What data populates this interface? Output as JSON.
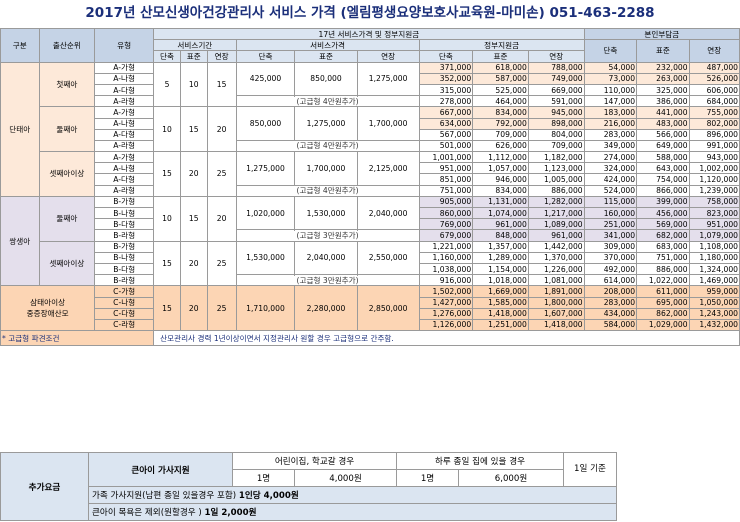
{
  "title": "2017년 산모신생아건강관리사 서비스 가격 (엘림평생요양보호사교육원-마미손)  051-463-2288",
  "headers": {
    "category": "구분",
    "birth_order": "출산순위",
    "type": "유형",
    "group_17": "17년 서비스가격 및 정부지원금",
    "self_pay": "본인부담금",
    "service_period": "서비스기간",
    "service_price": "서비스가격",
    "gov_support": "정부지원금",
    "short": "단축",
    "standard": "표준",
    "extended": "연장"
  },
  "notes": {
    "g1": "(고급형 4만원추가)",
    "g2": "(고급형 4만원추가)",
    "g3": "(고급형 4만원추가)",
    "g4": "(고급형 3만원추가)",
    "g5": "(고급형 3만원추가)"
  },
  "groups": [
    {
      "category": "단태아",
      "order": "첫째아",
      "days": [
        "5",
        "10",
        "15"
      ],
      "prices": [
        "425,000",
        "850,000",
        "1,275,000"
      ],
      "rows": [
        {
          "type": "A-가형",
          "gov": [
            "371,000",
            "618,000",
            "788,000"
          ],
          "self": [
            "54,000",
            "232,000",
            "487,000"
          ]
        },
        {
          "type": "A-나형",
          "gov": [
            "352,000",
            "587,000",
            "749,000"
          ],
          "self": [
            "73,000",
            "263,000",
            "526,000"
          ]
        },
        {
          "type": "A-다형",
          "gov": [
            "315,000",
            "525,000",
            "669,000"
          ],
          "self": [
            "110,000",
            "325,000",
            "606,000"
          ]
        },
        {
          "type": "A-라형",
          "gov": [
            "278,000",
            "464,000",
            "591,000"
          ],
          "self": [
            "147,000",
            "386,000",
            "684,000"
          ]
        }
      ]
    },
    {
      "order": "둘째아",
      "days": [
        "10",
        "15",
        "20"
      ],
      "prices": [
        "850,000",
        "1,275,000",
        "1,700,000"
      ],
      "rows": [
        {
          "type": "A-가형",
          "gov": [
            "667,000",
            "834,000",
            "945,000"
          ],
          "self": [
            "183,000",
            "441,000",
            "755,000"
          ]
        },
        {
          "type": "A-나형",
          "gov": [
            "634,000",
            "792,000",
            "898,000"
          ],
          "self": [
            "216,000",
            "483,000",
            "802,000"
          ]
        },
        {
          "type": "A-다형",
          "gov": [
            "567,000",
            "709,000",
            "804,000"
          ],
          "self": [
            "283,000",
            "566,000",
            "896,000"
          ]
        },
        {
          "type": "A-라형",
          "gov": [
            "501,000",
            "626,000",
            "709,000"
          ],
          "self": [
            "349,000",
            "649,000",
            "991,000"
          ]
        }
      ]
    },
    {
      "order": "셋째아이상",
      "days": [
        "15",
        "20",
        "25"
      ],
      "prices": [
        "1,275,000",
        "1,700,000",
        "2,125,000"
      ],
      "rows": [
        {
          "type": "A-가형",
          "gov": [
            "1,001,000",
            "1,112,000",
            "1,182,000"
          ],
          "self": [
            "274,000",
            "588,000",
            "943,000"
          ]
        },
        {
          "type": "A-나형",
          "gov": [
            "951,000",
            "1,057,000",
            "1,123,000"
          ],
          "self": [
            "324,000",
            "643,000",
            "1,002,000"
          ]
        },
        {
          "type": "A-다형",
          "gov": [
            "851,000",
            "946,000",
            "1,005,000"
          ],
          "self": [
            "424,000",
            "754,000",
            "1,120,000"
          ]
        },
        {
          "type": "A-라형",
          "gov": [
            "751,000",
            "834,000",
            "886,000"
          ],
          "self": [
            "524,000",
            "866,000",
            "1,239,000"
          ]
        }
      ]
    },
    {
      "category": "쌍생아",
      "order": "둘째아",
      "days": [
        "10",
        "15",
        "20"
      ],
      "prices": [
        "1,020,000",
        "1,530,000",
        "2,040,000"
      ],
      "rows": [
        {
          "type": "B-가형",
          "gov": [
            "905,000",
            "1,131,000",
            "1,282,000"
          ],
          "self": [
            "115,000",
            "399,000",
            "758,000"
          ]
        },
        {
          "type": "B-나형",
          "gov": [
            "860,000",
            "1,074,000",
            "1,217,000"
          ],
          "self": [
            "160,000",
            "456,000",
            "823,000"
          ]
        },
        {
          "type": "B-다형",
          "gov": [
            "769,000",
            "961,000",
            "1,089,000"
          ],
          "self": [
            "251,000",
            "569,000",
            "951,000"
          ]
        },
        {
          "type": "B-라형",
          "gov": [
            "679,000",
            "848,000",
            "961,000"
          ],
          "self": [
            "341,000",
            "682,000",
            "1,079,000"
          ]
        }
      ]
    },
    {
      "order": "셋째아이상",
      "days": [
        "15",
        "20",
        "25"
      ],
      "prices": [
        "1,530,000",
        "2,040,000",
        "2,550,000"
      ],
      "rows": [
        {
          "type": "B-가형",
          "gov": [
            "1,221,000",
            "1,357,000",
            "1,442,000"
          ],
          "self": [
            "309,000",
            "683,000",
            "1,108,000"
          ]
        },
        {
          "type": "B-나형",
          "gov": [
            "1,160,000",
            "1,289,000",
            "1,370,000"
          ],
          "self": [
            "370,000",
            "751,000",
            "1,180,000"
          ]
        },
        {
          "type": "B-다형",
          "gov": [
            "1,038,000",
            "1,154,000",
            "1,226,000"
          ],
          "self": [
            "492,000",
            "886,000",
            "1,324,000"
          ]
        },
        {
          "type": "B-라형",
          "gov": [
            "916,000",
            "1,018,000",
            "1,081,000"
          ],
          "self": [
            "614,000",
            "1,022,000",
            "1,469,000"
          ]
        }
      ]
    },
    {
      "category": "삼태아이상\n중증장애산모",
      "days": [
        "15",
        "20",
        "25"
      ],
      "prices": [
        "1,710,000",
        "2,280,000",
        "2,850,000"
      ],
      "rows": [
        {
          "type": "C-가형",
          "gov": [
            "1,502,000",
            "1,669,000",
            "1,891,000"
          ],
          "self": [
            "208,000",
            "611,000",
            "959,000"
          ]
        },
        {
          "type": "C-나형",
          "gov": [
            "1,427,000",
            "1,585,000",
            "1,800,000"
          ],
          "self": [
            "283,000",
            "695,000",
            "1,050,000"
          ]
        },
        {
          "type": "C-다형",
          "gov": [
            "1,276,000",
            "1,418,000",
            "1,607,000"
          ],
          "self": [
            "434,000",
            "862,000",
            "1,243,000"
          ]
        },
        {
          "type": "C-라형",
          "gov": [
            "1,126,000",
            "1,251,000",
            "1,418,000"
          ],
          "self": [
            "584,000",
            "1,029,000",
            "1,432,000"
          ]
        }
      ]
    }
  ],
  "premium_note": {
    "label": "* 고급형 파견조건",
    "text": "산모관리사 경력 1년이상이면서 지정관리사 원할 경우 고급형으로 간주함."
  },
  "extra": {
    "label": "추가요금",
    "sibling_title": "큰아이 가사지원",
    "col1_head": "어린이집, 학교갈 경우",
    "col2_head": "하루 종일 집에 있을 경우",
    "col3_head": "1일 기준",
    "p1a": "1명",
    "p1b": "4,000원",
    "p2a": "1명",
    "p2b": "6,000원",
    "family_text": "가족 가사지원(남편 종일 있을경우 포함) ",
    "family_bold": "1인당 4,000원",
    "bath_text": "큰아이 목욕은 제외(원할경우 ) ",
    "bath_bold": "1일  2,000원"
  }
}
